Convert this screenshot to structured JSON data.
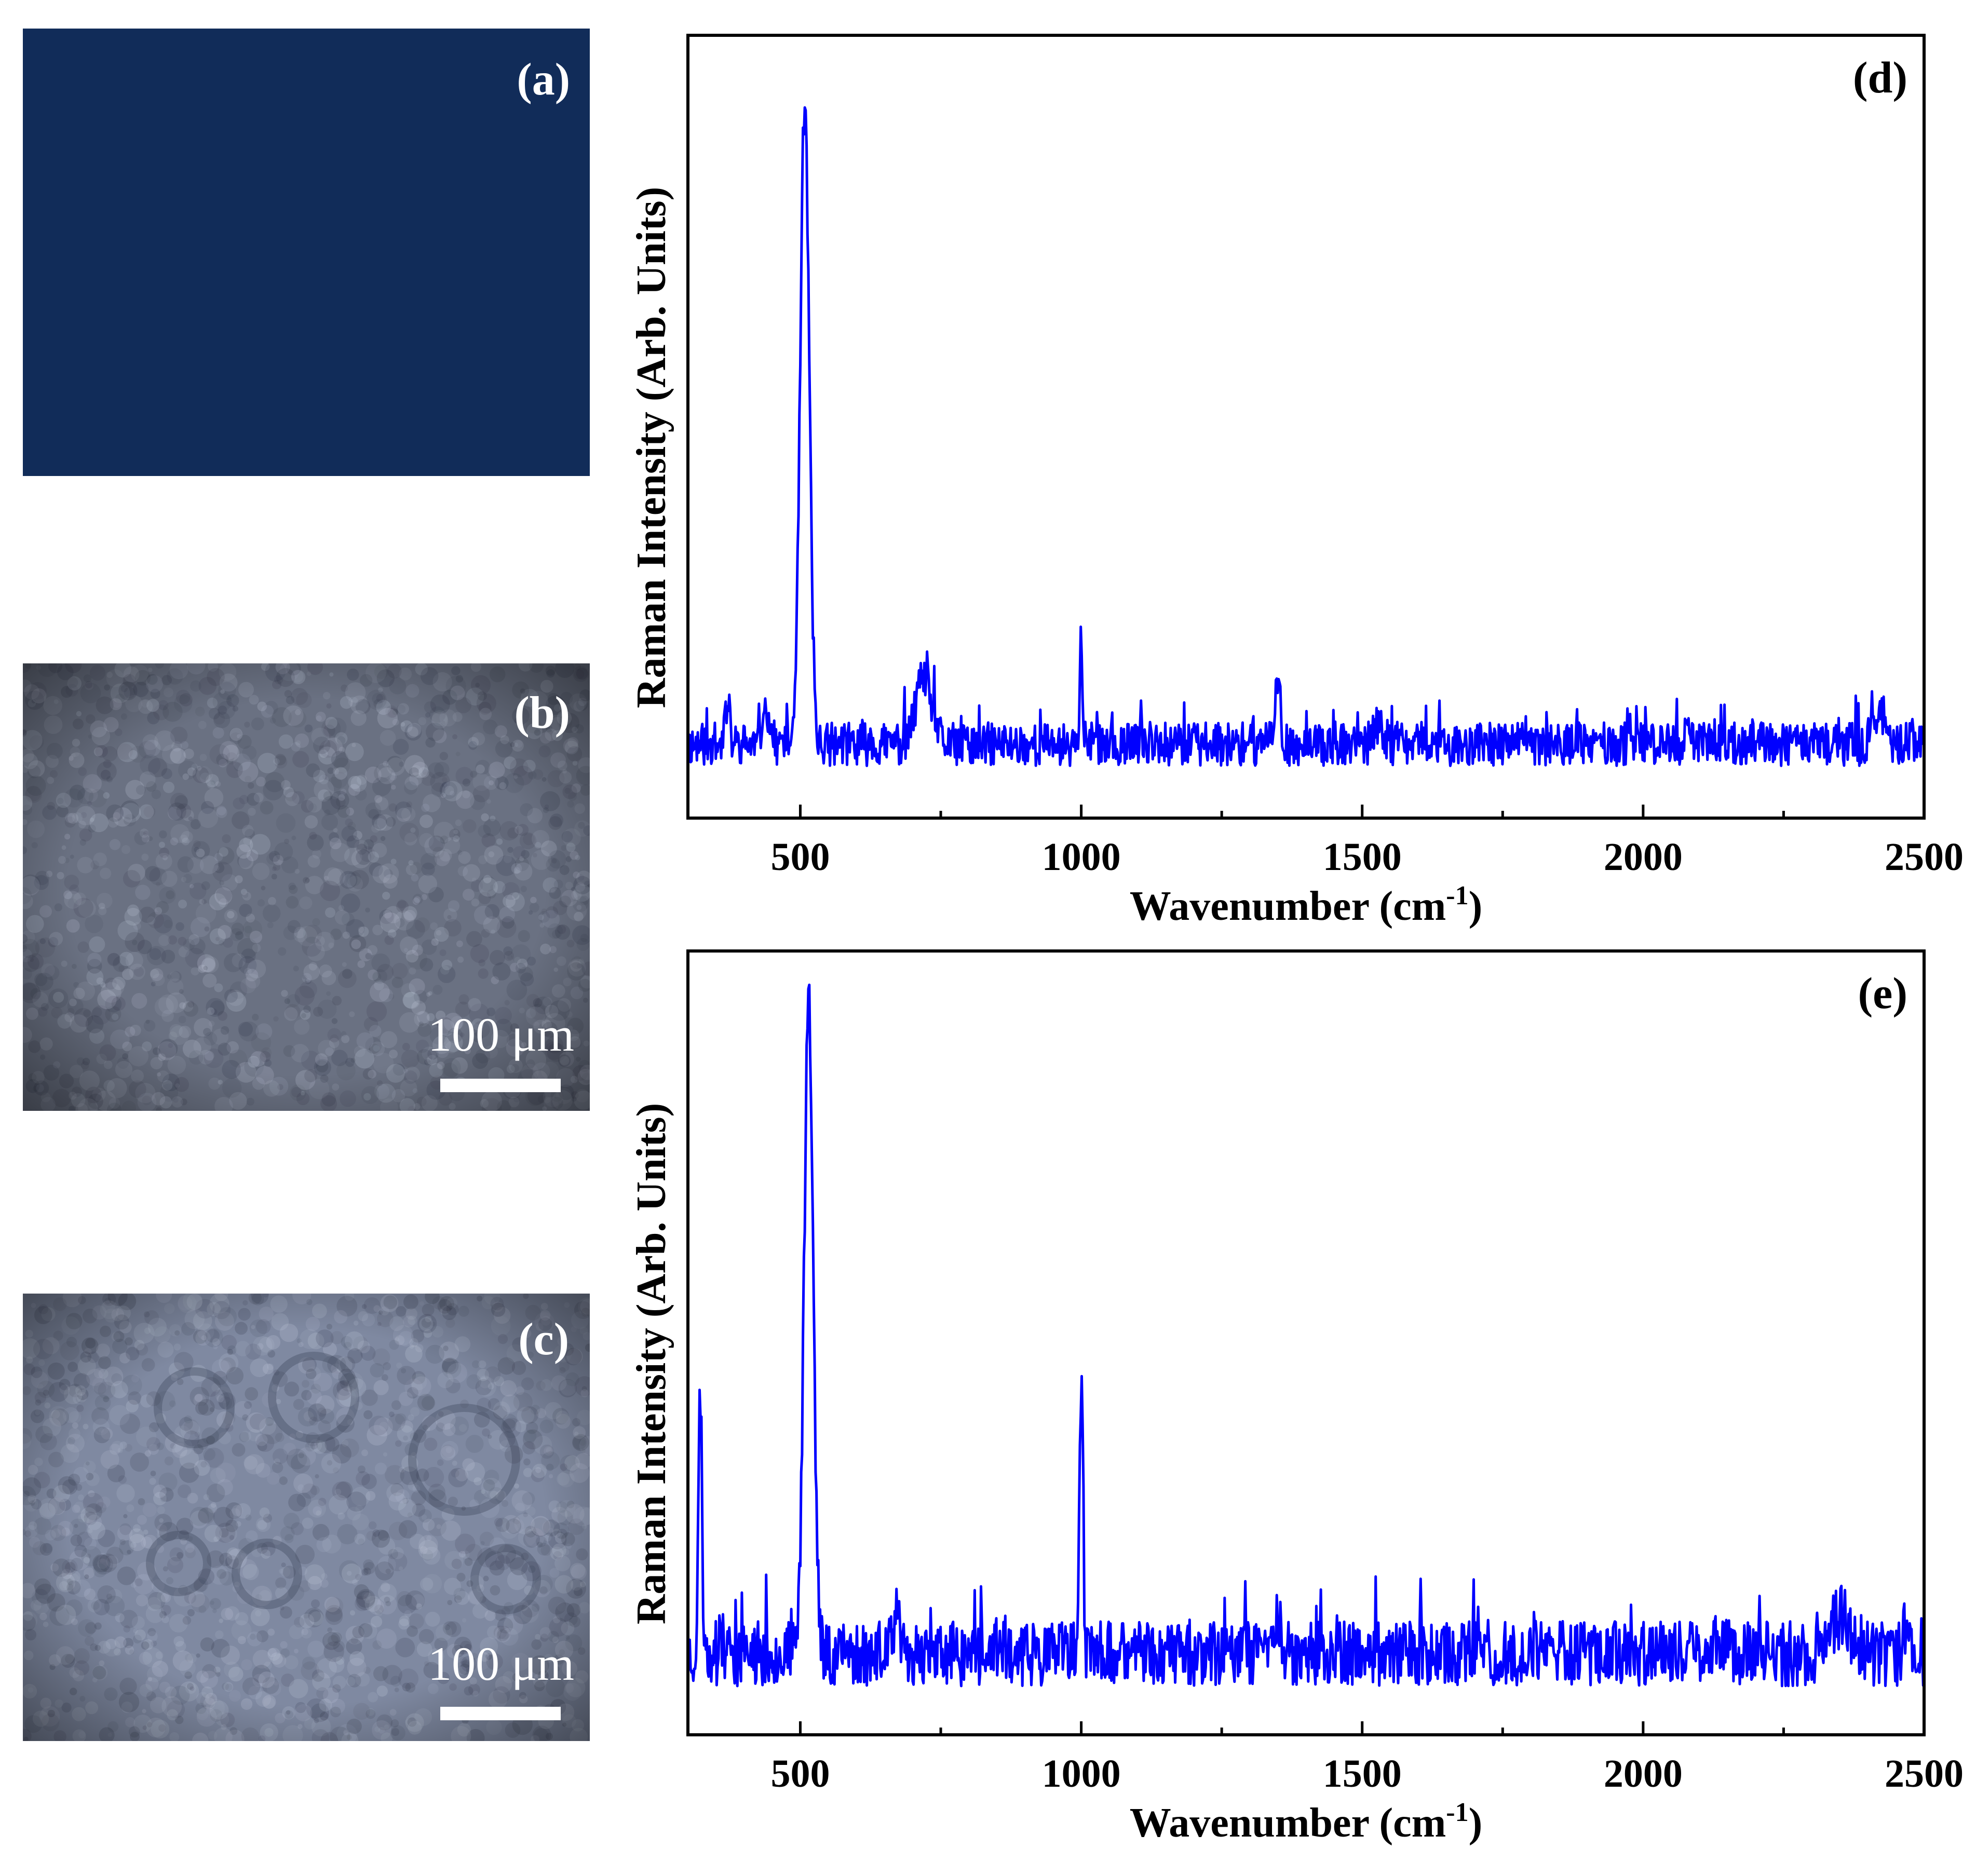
{
  "photos": [
    {
      "label": "(a)",
      "scale_text": "",
      "base_color": "#0e2a55",
      "mottled": false
    },
    {
      "label": "(b)",
      "scale_text": "100 μm",
      "base_color": "#6a7182",
      "mottled": true
    },
    {
      "label": "(c)",
      "scale_text": "100 μm",
      "base_color": "#7f89a1",
      "mottled": true
    }
  ],
  "chart_data": [
    {
      "type": "line",
      "label": "(d)",
      "xlabel": "Wavenumber (cm",
      "xlabel_sup": "-1",
      "xlabel_end": ")",
      "ylabel": "Raman Intensity (Arb. Units)",
      "xlim": [
        300,
        2500
      ],
      "ylim": [
        0,
        1
      ],
      "xticks": [
        500,
        1000,
        1500,
        2000,
        2500
      ],
      "line_color": "#0000ff",
      "baseline": 0.07,
      "noise": 0.03,
      "peaks": [
        {
          "x": 508,
          "height": 0.88,
          "width": 8
        },
        {
          "x": 370,
          "height": 0.06,
          "width": 4
        },
        {
          "x": 440,
          "height": 0.05,
          "width": 6
        },
        {
          "x": 720,
          "height": 0.09,
          "width": 14
        },
        {
          "x": 1000,
          "height": 0.12,
          "width": 3
        },
        {
          "x": 1350,
          "height": 0.08,
          "width": 5
        },
        {
          "x": 1530,
          "height": 0.03,
          "width": 8
        },
        {
          "x": 2080,
          "height": 0.04,
          "width": 4
        },
        {
          "x": 2420,
          "height": 0.05,
          "width": 10
        }
      ],
      "seed": 11
    },
    {
      "type": "line",
      "label": "(e)",
      "xlabel": "Wavenumber (cm",
      "xlabel_sup": "-1",
      "xlabel_end": ")",
      "ylabel": "Raman Intensity (Arb. Units)",
      "xlim": [
        300,
        2500
      ],
      "ylim": [
        0,
        1
      ],
      "xticks": [
        500,
        1000,
        1500,
        2000,
        2500
      ],
      "line_color": "#0000ff",
      "baseline": 0.08,
      "noise": 0.045,
      "peaks": [
        {
          "x": 322,
          "height": 0.37,
          "width": 3
        },
        {
          "x": 515,
          "height": 0.92,
          "width": 8
        },
        {
          "x": 1000,
          "height": 0.38,
          "width": 3
        },
        {
          "x": 670,
          "height": 0.05,
          "width": 6
        },
        {
          "x": 1350,
          "height": 0.06,
          "width": 6
        },
        {
          "x": 2150,
          "height": 0.03,
          "width": 6
        },
        {
          "x": 2350,
          "height": 0.05,
          "width": 20
        },
        {
          "x": 2470,
          "height": 0.05,
          "width": 5
        }
      ],
      "seed": 23
    }
  ]
}
